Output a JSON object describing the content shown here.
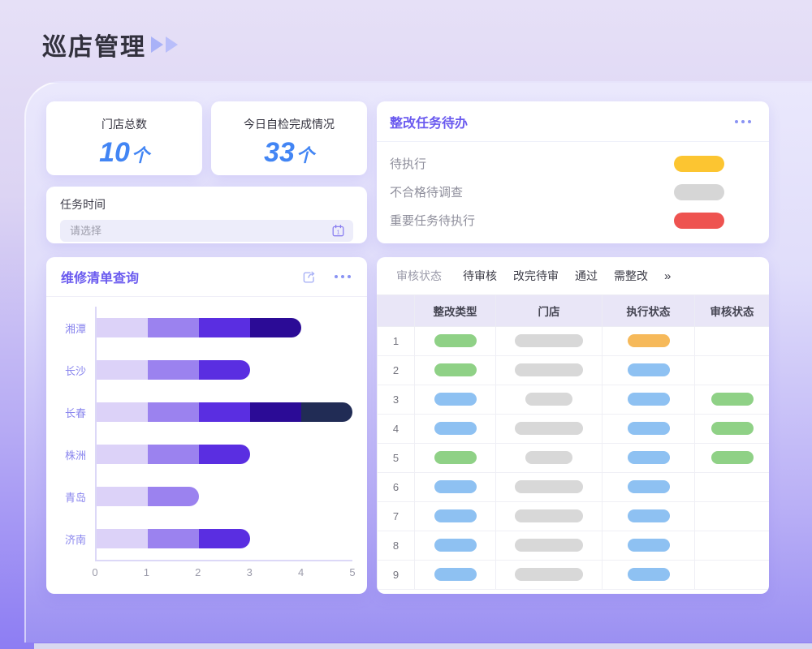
{
  "page": {
    "title": "巡店管理"
  },
  "stats": [
    {
      "label": "门店总数",
      "value": "10",
      "unit": "个"
    },
    {
      "label": "今日自检完成情况",
      "value": "33",
      "unit": "个"
    }
  ],
  "task_time": {
    "label": "任务时间",
    "placeholder": "请选择",
    "calendar_icon": "calendar-icon"
  },
  "todo": {
    "title": "整改任务待办",
    "menu_icon": "ellipsis-icon",
    "items": [
      {
        "label": "待执行",
        "color": "#FCC531"
      },
      {
        "label": "不合格待调查",
        "color": "#D6D6D6"
      },
      {
        "label": "重要任务待执行",
        "color": "#EE5350"
      }
    ]
  },
  "repair": {
    "title": "维修清单查询",
    "share_icon": "share-icon",
    "menu_icon": "ellipsis-icon"
  },
  "chart_data": {
    "type": "bar",
    "orientation": "horizontal-stacked",
    "title": "维修清单查询",
    "categories": [
      "湘潭",
      "长沙",
      "长春",
      "株洲",
      "青岛",
      "济南"
    ],
    "values": [
      4,
      3,
      5,
      3,
      2,
      3
    ],
    "segments": [
      [
        1,
        1,
        1,
        1
      ],
      [
        1,
        1,
        1
      ],
      [
        1,
        1,
        1,
        1,
        1
      ],
      [
        1,
        1,
        1
      ],
      [
        1,
        1
      ],
      [
        1,
        1,
        1
      ]
    ],
    "segment_colors": [
      "#DCD2F8",
      "#9B82EF",
      "#5A2EE1",
      "#2B0B96",
      "#212C55"
    ],
    "xticks": [
      0,
      1,
      2,
      3,
      4,
      5
    ],
    "xlim": [
      0,
      5
    ],
    "grid": false,
    "legend": false,
    "axis_color": "#DCD8F7",
    "category_label_color": "#8A86EE"
  },
  "review_table": {
    "filter_label": "审核状态",
    "tabs": [
      "待审核",
      "改完待审",
      "通过",
      "需整改"
    ],
    "more": "»",
    "columns": [
      "",
      "整改类型",
      "门店",
      "执行状态",
      "审核状态"
    ],
    "pill_colors": {
      "green": "#8FD186",
      "blue": "#8EC1F2",
      "orange": "#F6B95A",
      "gray": "#D8D8D8"
    },
    "rows": [
      {
        "num": "1",
        "type": "green",
        "store": "wide",
        "exec": "orange",
        "review": null
      },
      {
        "num": "2",
        "type": "green",
        "store": "wide",
        "exec": "blue",
        "review": null
      },
      {
        "num": "3",
        "type": "blue",
        "store": "narrow",
        "exec": "blue",
        "review": "green"
      },
      {
        "num": "4",
        "type": "blue",
        "store": "wide",
        "exec": "blue",
        "review": "green"
      },
      {
        "num": "5",
        "type": "green",
        "store": "narrow",
        "exec": "blue",
        "review": "green"
      },
      {
        "num": "6",
        "type": "blue",
        "store": "wide",
        "exec": "blue",
        "review": null
      },
      {
        "num": "7",
        "type": "blue",
        "store": "wide",
        "exec": "blue",
        "review": null
      },
      {
        "num": "8",
        "type": "blue",
        "store": "wide",
        "exec": "blue",
        "review": null
      },
      {
        "num": "9",
        "type": "blue",
        "store": "wide",
        "exec": "blue",
        "review": null
      }
    ]
  }
}
